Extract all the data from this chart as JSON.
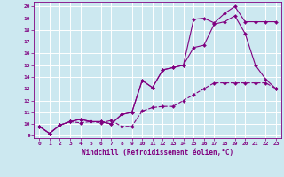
{
  "xlabel": "Windchill (Refroidissement éolien,°C)",
  "bg_color": "#cce8f0",
  "line_color": "#800080",
  "grid_color": "#ffffff",
  "xlim": [
    -0.5,
    23.5
  ],
  "ylim": [
    8.8,
    20.4
  ],
  "xticks": [
    0,
    1,
    2,
    3,
    4,
    5,
    6,
    7,
    8,
    9,
    10,
    11,
    12,
    13,
    14,
    15,
    16,
    17,
    18,
    19,
    20,
    21,
    22,
    23
  ],
  "yticks": [
    9,
    10,
    11,
    12,
    13,
    14,
    15,
    16,
    17,
    18,
    19,
    20
  ],
  "line1_x": [
    0,
    1,
    2,
    3,
    4,
    5,
    6,
    7,
    8,
    9,
    10,
    11,
    12,
    13,
    14,
    15,
    16,
    17,
    18,
    19,
    20,
    21,
    22,
    23
  ],
  "line1_y": [
    9.8,
    9.2,
    9.9,
    10.2,
    10.1,
    10.2,
    10.1,
    10.3,
    9.8,
    9.8,
    11.1,
    11.4,
    11.5,
    11.5,
    12.0,
    12.5,
    13.0,
    13.5,
    13.5,
    13.5,
    13.5,
    13.5,
    13.5,
    13.0
  ],
  "line2_x": [
    0,
    1,
    2,
    3,
    4,
    5,
    6,
    7,
    8,
    9,
    10,
    11,
    12,
    13,
    14,
    15,
    16,
    17,
    18,
    19,
    20,
    21,
    22,
    23
  ],
  "line2_y": [
    9.8,
    9.2,
    9.9,
    10.2,
    10.4,
    10.2,
    10.2,
    10.0,
    10.8,
    11.0,
    13.7,
    13.1,
    14.6,
    14.8,
    15.0,
    16.5,
    16.7,
    18.5,
    18.7,
    19.2,
    17.7,
    15.0,
    13.8,
    13.0
  ],
  "line3_x": [
    0,
    1,
    2,
    3,
    4,
    5,
    6,
    7,
    8,
    9,
    10,
    11,
    12,
    13,
    14,
    15,
    16,
    17,
    18,
    19,
    20,
    21,
    22,
    23
  ],
  "line3_y": [
    9.8,
    9.2,
    9.9,
    10.2,
    10.4,
    10.2,
    10.2,
    10.0,
    10.8,
    11.0,
    13.7,
    13.1,
    14.6,
    14.8,
    15.0,
    18.9,
    19.0,
    18.6,
    19.4,
    20.0,
    18.7,
    18.7,
    18.7,
    18.7
  ],
  "xlabel_fontsize": 5.5,
  "tick_fontsize": 4.5
}
